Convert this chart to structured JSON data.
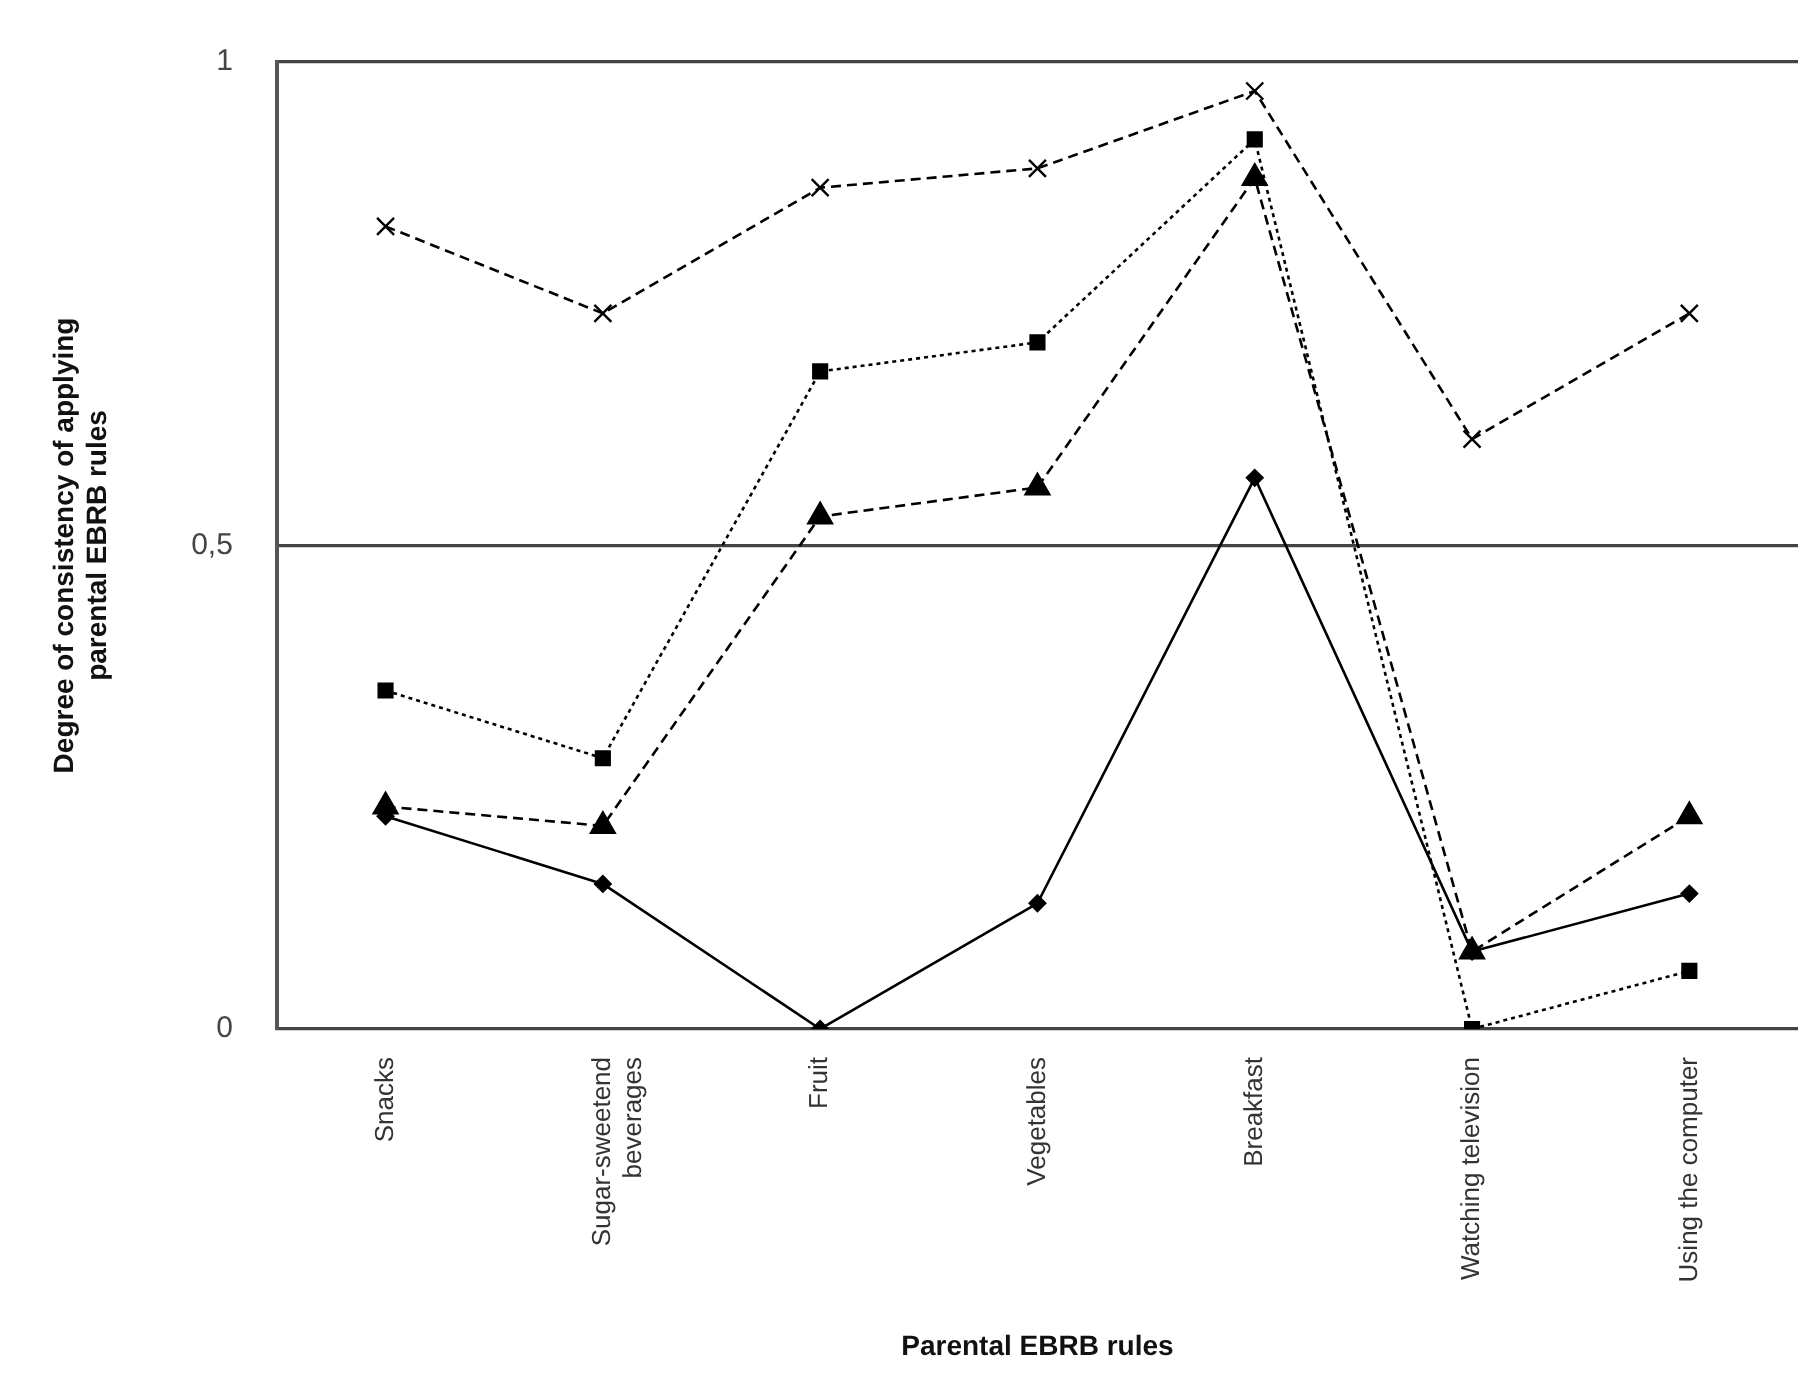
{
  "chart_data": {
    "type": "line",
    "xlabel": "Parental EBRB rules",
    "ylabel": "Degree of consistency of applying parental EBRB rules",
    "categories": [
      "Snacks",
      "Sugar-sweetend beverages",
      "Fruit",
      "Vegetables",
      "Breakfast",
      "Watching television",
      "Using the computer"
    ],
    "series": [
      {
        "color": "#000000",
        "marker": "cross",
        "line_style": "dashed",
        "values": [
          0.83,
          0.74,
          0.87,
          0.89,
          0.97,
          0.61,
          0.74
        ]
      },
      {
        "color": "#000000",
        "marker": "square",
        "line_style": "dotted",
        "values": [
          0.35,
          0.28,
          0.68,
          0.71,
          0.92,
          0.0,
          0.06
        ]
      },
      {
        "color": "#000000",
        "marker": "triangle",
        "line_style": "dashed",
        "values": [
          0.23,
          0.21,
          0.53,
          0.56,
          0.88,
          0.08,
          0.22
        ]
      },
      {
        "color": "#000000",
        "marker": "diamond",
        "line_style": "solid",
        "values": [
          0.22,
          0.15,
          0.0,
          0.13,
          0.57,
          0.08,
          0.14
        ]
      }
    ],
    "ylim": [
      0,
      1
    ],
    "yticks": [
      0,
      {
        "value": 0.5,
        "label": "0,5"
      },
      1
    ],
    "grid": "y",
    "legend": false
  }
}
